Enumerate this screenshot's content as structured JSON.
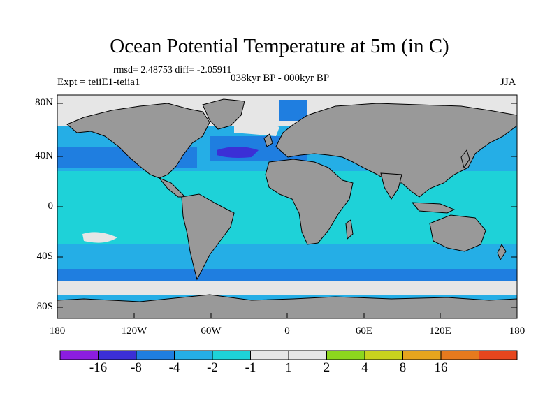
{
  "title": "Ocean Potential Temperature at 5m (in C)",
  "stats": "rmsd= 2.48753 diff= -2.05911",
  "expt": "Expt = teiiE1-teiia1",
  "period": "038kyr BP - 000kyr BP",
  "season": "JJA",
  "lat_labels": [
    "80N",
    "40N",
    "0",
    "40S",
    "80S"
  ],
  "lon_labels": [
    "180",
    "120W",
    "60W",
    "0",
    "60E",
    "120E",
    "180"
  ],
  "colorbar": {
    "colors": [
      "#8c1de0",
      "#3b2fd6",
      "#1f7ee0",
      "#25aee6",
      "#1ed2d8",
      "#e6e6e6",
      "#e6e6e6",
      "#8cd61e",
      "#c8d21e",
      "#e6a51e",
      "#e67a1e",
      "#e6461e"
    ],
    "labels": [
      "-16",
      "-8",
      "-4",
      "-2",
      "-1",
      "1",
      "2",
      "4",
      "8",
      "16"
    ]
  },
  "colors": {
    "land": "#999999",
    "deep_blue": "#1f7ee0",
    "mid_blue": "#25aee6",
    "cyan": "#1ed2d8",
    "near_zero": "#e6e6e6",
    "violet": "#3b2fd6"
  }
}
